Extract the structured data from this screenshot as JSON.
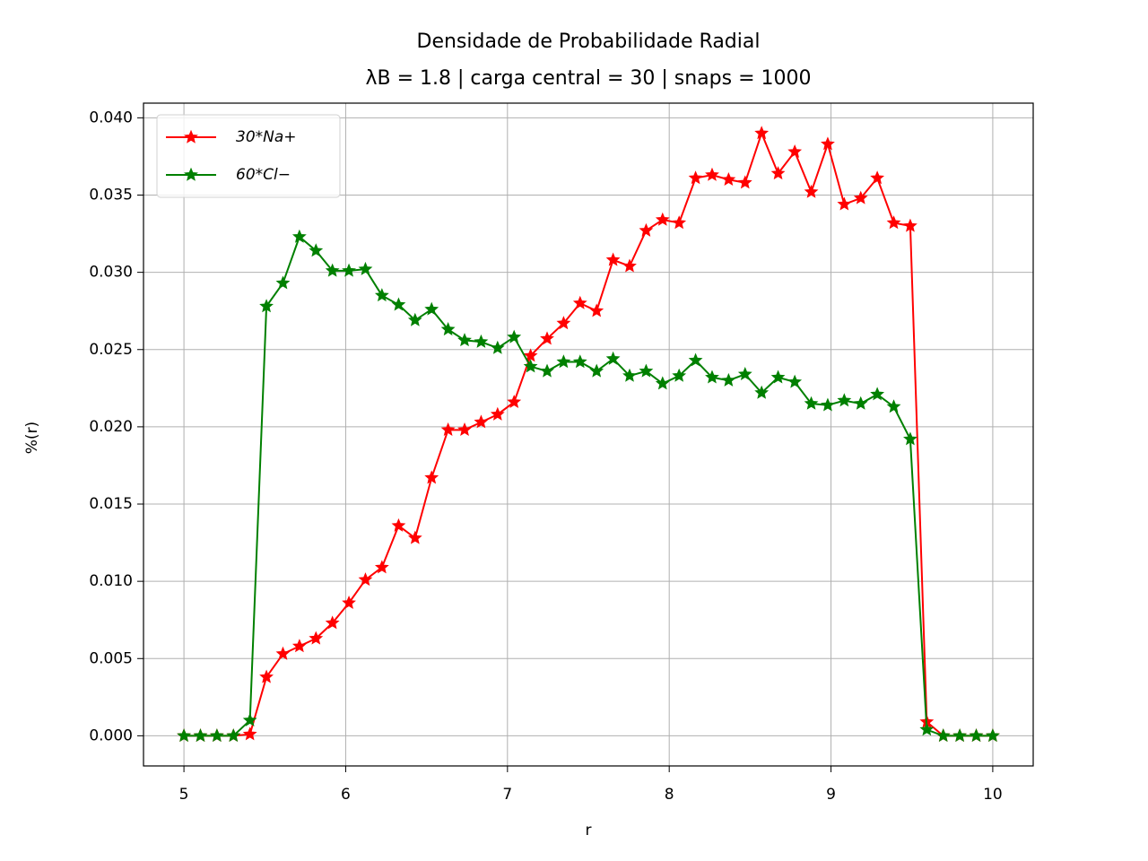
{
  "chart_data": {
    "type": "line",
    "title": "Densidade de Probabilidade Radial",
    "subtitle": "λB = 1.8 | carga central = 30 | snaps = 1000",
    "xlabel": "r",
    "ylabel": "%(r)",
    "x": [
      5.0,
      5.102,
      5.204,
      5.306,
      5.408,
      5.51,
      5.612,
      5.714,
      5.816,
      5.918,
      6.02,
      6.122,
      6.224,
      6.327,
      6.429,
      6.531,
      6.633,
      6.735,
      6.837,
      6.939,
      7.041,
      7.143,
      7.245,
      7.347,
      7.449,
      7.551,
      7.653,
      7.755,
      7.857,
      7.959,
      8.061,
      8.163,
      8.265,
      8.367,
      8.469,
      8.571,
      8.673,
      8.776,
      8.878,
      8.98,
      9.082,
      9.184,
      9.286,
      9.388,
      9.49,
      9.592,
      9.694,
      9.796,
      9.898,
      10.0
    ],
    "series": [
      {
        "name": "30*Na+",
        "color": "#ff0000",
        "values": [
          0,
          0,
          0,
          0,
          0.0001,
          0.0038,
          0.0053,
          0.0058,
          0.0063,
          0.0073,
          0.0086,
          0.0101,
          0.0109,
          0.0136,
          0.0128,
          0.0167,
          0.0198,
          0.0198,
          0.0203,
          0.0208,
          0.0216,
          0.0246,
          0.0257,
          0.0267,
          0.028,
          0.0275,
          0.0308,
          0.0304,
          0.0327,
          0.0334,
          0.0332,
          0.0361,
          0.0363,
          0.036,
          0.0358,
          0.039,
          0.0364,
          0.0378,
          0.0352,
          0.0383,
          0.0344,
          0.0348,
          0.0361,
          0.0332,
          0.033,
          0.0009,
          0,
          0,
          0,
          0
        ]
      },
      {
        "name": "60*Cl−",
        "color": "#008000",
        "values": [
          0,
          0,
          0,
          0,
          0.001,
          0.0278,
          0.0293,
          0.0323,
          0.0314,
          0.0301,
          0.0301,
          0.0302,
          0.0285,
          0.0279,
          0.0269,
          0.0276,
          0.0263,
          0.0256,
          0.0255,
          0.0251,
          0.0258,
          0.0239,
          0.0236,
          0.0242,
          0.0242,
          0.0236,
          0.0244,
          0.0233,
          0.0236,
          0.0228,
          0.0233,
          0.0243,
          0.0232,
          0.023,
          0.0234,
          0.0222,
          0.0232,
          0.0229,
          0.0215,
          0.0214,
          0.0217,
          0.0215,
          0.0221,
          0.0213,
          0.0192,
          0.0004,
          0,
          0,
          0,
          0
        ]
      }
    ],
    "xlim": [
      4.75,
      10.25
    ],
    "ylim": [
      -0.00195,
      0.04095
    ],
    "xticks": [
      5,
      6,
      7,
      8,
      9,
      10
    ],
    "yticks": [
      {
        "value": 0,
        "label": "0.000"
      },
      {
        "value": 0.005,
        "label": "0.005"
      },
      {
        "value": 0.01,
        "label": "0.010"
      },
      {
        "value": 0.015,
        "label": "0.015"
      },
      {
        "value": 0.02,
        "label": "0.020"
      },
      {
        "value": 0.025,
        "label": "0.025"
      },
      {
        "value": 0.03,
        "label": "0.030"
      },
      {
        "value": 0.035,
        "label": "0.035"
      },
      {
        "value": 0.04,
        "label": "0.040"
      }
    ],
    "grid": true,
    "legend": "upper left",
    "marker": "star"
  }
}
